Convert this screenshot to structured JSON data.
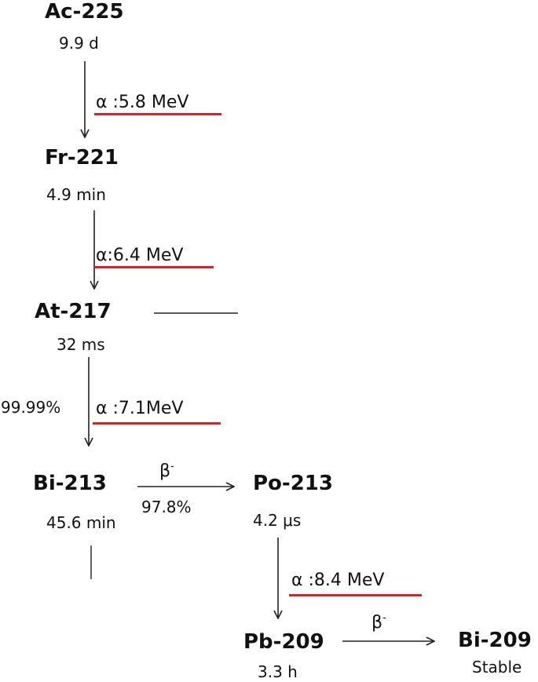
{
  "nuclides": {
    "ac225": {
      "name": "Ac-225",
      "halflife": "9.9 d"
    },
    "fr221": {
      "name": "Fr-221",
      "halflife": "4.9 min"
    },
    "at217": {
      "name": "At-217",
      "halflife": "32 ms"
    },
    "bi213": {
      "name": "Bi-213",
      "halflife": "45.6 min"
    },
    "po213": {
      "name": "Po-213",
      "halflife": "4.2 μs"
    },
    "pb209": {
      "name": "Pb-209",
      "halflife": "3.3 h"
    },
    "bi209": {
      "name": "Bi-209",
      "halflife": "Stable"
    }
  },
  "decays": {
    "ac225_fr221": {
      "label": "α :5.8 MeV"
    },
    "fr221_at217": {
      "label": "α:6.4 MeV"
    },
    "at217_bi213": {
      "label": "α :7.1MeV",
      "branch": "99.99%"
    },
    "bi213_po213": {
      "symbol": "β",
      "superscript": "-",
      "branch": "97.8%"
    },
    "po213_pb209": {
      "label": "α :8.4 MeV"
    },
    "pb209_bi209": {
      "symbol": "β",
      "superscript": "-"
    }
  },
  "colors": {
    "underline": "#e01e24",
    "arrow": "#222222"
  }
}
